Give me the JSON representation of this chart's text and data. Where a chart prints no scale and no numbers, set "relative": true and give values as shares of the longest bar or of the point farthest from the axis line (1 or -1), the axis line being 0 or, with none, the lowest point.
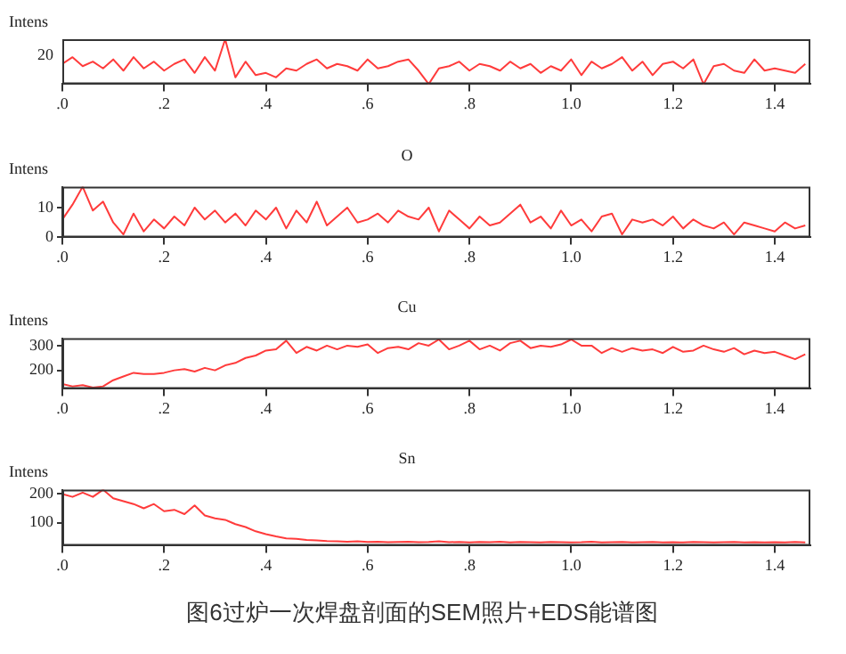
{
  "chart_data": [
    {
      "type": "line",
      "ylabel": "Intens",
      "relative": true,
      "annotations": [
        "20"
      ],
      "grid": false,
      "legend": false,
      "marker": "none",
      "x": [
        0,
        0.02,
        0.04,
        0.06,
        0.08,
        0.1,
        0.12,
        0.14,
        0.16,
        0.18,
        0.2,
        0.22,
        0.24,
        0.26,
        0.28,
        0.3,
        0.32,
        0.34,
        0.36,
        0.38,
        0.4,
        0.42,
        0.44,
        0.46,
        0.48,
        0.5,
        0.52,
        0.54,
        0.56,
        0.58,
        0.6,
        0.62,
        0.64,
        0.66,
        0.68,
        0.7,
        0.72,
        0.74,
        0.76,
        0.78,
        0.8,
        0.82,
        0.84,
        0.86,
        0.88,
        0.9,
        0.92,
        0.94,
        0.96,
        0.98,
        1,
        1.02,
        1.04,
        1.06,
        1.08,
        1.1,
        1.12,
        1.14,
        1.16,
        1.18,
        1.2,
        1.22,
        1.24,
        1.26,
        1.28,
        1.3,
        1.32,
        1.34,
        1.36,
        1.38,
        1.4,
        1.42,
        1.44,
        1.46
      ],
      "xlim": [
        0,
        1.47
      ],
      "xticks": [
        {
          "value": 0,
          "label": ".0"
        },
        {
          "value": 0.2,
          "label": ".2"
        },
        {
          "value": 0.4,
          "label": ".4"
        },
        {
          "value": 0.6,
          "label": ".6"
        },
        {
          "value": 0.8,
          "label": ".8"
        },
        {
          "value": 1,
          "label": "1.0"
        },
        {
          "value": 1.2,
          "label": "1.2"
        },
        {
          "value": 1.4,
          "label": "1.4"
        }
      ],
      "series": [
        {
          "color": "#ff3b3b",
          "values": [
            0.45,
            0.6,
            0.4,
            0.5,
            0.35,
            0.55,
            0.3,
            0.6,
            0.35,
            0.5,
            0.3,
            0.45,
            0.55,
            0.25,
            0.6,
            0.3,
            1,
            0.15,
            0.5,
            0.2,
            0.25,
            0.15,
            0.35,
            0.3,
            0.45,
            0.55,
            0.35,
            0.45,
            0.4,
            0.3,
            0.55,
            0.35,
            0.4,
            0.5,
            0.55,
            0.3,
            0,
            0.35,
            0.4,
            0.5,
            0.3,
            0.45,
            0.4,
            0.3,
            0.5,
            0.35,
            0.45,
            0.25,
            0.4,
            0.3,
            0.55,
            0.2,
            0.5,
            0.35,
            0.45,
            0.6,
            0.3,
            0.5,
            0.2,
            0.45,
            0.5,
            0.35,
            0.55,
            0,
            0.4,
            0.45,
            0.3,
            0.25,
            0.55,
            0.3,
            0.35,
            0.3,
            0.25,
            0.45
          ]
        }
      ]
    },
    {
      "type": "line",
      "title": "O",
      "ylabel": "Intens",
      "grid": false,
      "legend": false,
      "marker": "none",
      "x": [
        0,
        0.02,
        0.04,
        0.06,
        0.08,
        0.1,
        0.12,
        0.14,
        0.16,
        0.18,
        0.2,
        0.22,
        0.24,
        0.26,
        0.28,
        0.3,
        0.32,
        0.34,
        0.36,
        0.38,
        0.4,
        0.42,
        0.44,
        0.46,
        0.48,
        0.5,
        0.52,
        0.54,
        0.56,
        0.58,
        0.6,
        0.62,
        0.64,
        0.66,
        0.68,
        0.7,
        0.72,
        0.74,
        0.76,
        0.78,
        0.8,
        0.82,
        0.84,
        0.86,
        0.88,
        0.9,
        0.92,
        0.94,
        0.96,
        0.98,
        1,
        1.02,
        1.04,
        1.06,
        1.08,
        1.1,
        1.12,
        1.14,
        1.16,
        1.18,
        1.2,
        1.22,
        1.24,
        1.26,
        1.28,
        1.3,
        1.32,
        1.34,
        1.36,
        1.38,
        1.4,
        1.42,
        1.44,
        1.46
      ],
      "xlim": [
        0,
        1.47
      ],
      "xticks": [
        {
          "value": 0,
          "label": ".0"
        },
        {
          "value": 0.2,
          "label": ".2"
        },
        {
          "value": 0.4,
          "label": ".4"
        },
        {
          "value": 0.6,
          "label": ".6"
        },
        {
          "value": 0.8,
          "label": ".8"
        },
        {
          "value": 1,
          "label": "1.0"
        },
        {
          "value": 1.2,
          "label": "1.2"
        },
        {
          "value": 1.4,
          "label": "1.4"
        }
      ],
      "ylim": [
        0,
        17
      ],
      "yticks": [
        0,
        10
      ],
      "series": [
        {
          "color": "#ff3b3b",
          "values": [
            6,
            11,
            17,
            9,
            12,
            5,
            1,
            8,
            2,
            6,
            3,
            7,
            4,
            10,
            6,
            9,
            5,
            8,
            4,
            9,
            6,
            10,
            3,
            9,
            5,
            12,
            4,
            7,
            10,
            5,
            6,
            8,
            5,
            9,
            7,
            6,
            10,
            2,
            9,
            6,
            3,
            7,
            4,
            5,
            8,
            11,
            5,
            7,
            3,
            9,
            4,
            6,
            2,
            7,
            8,
            1,
            6,
            5,
            6,
            4,
            7,
            3,
            6,
            4,
            3,
            5,
            1,
            5,
            4,
            3,
            2,
            5,
            3,
            4
          ]
        }
      ]
    },
    {
      "type": "line",
      "title": "Cu",
      "ylabel": "Intens",
      "grid": false,
      "legend": false,
      "marker": "none",
      "x": [
        0,
        0.02,
        0.04,
        0.06,
        0.08,
        0.1,
        0.12,
        0.14,
        0.16,
        0.18,
        0.2,
        0.22,
        0.24,
        0.26,
        0.28,
        0.3,
        0.32,
        0.34,
        0.36,
        0.38,
        0.4,
        0.42,
        0.44,
        0.46,
        0.48,
        0.5,
        0.52,
        0.54,
        0.56,
        0.58,
        0.6,
        0.62,
        0.64,
        0.66,
        0.68,
        0.7,
        0.72,
        0.74,
        0.76,
        0.78,
        0.8,
        0.82,
        0.84,
        0.86,
        0.88,
        0.9,
        0.92,
        0.94,
        0.96,
        0.98,
        1,
        1.02,
        1.04,
        1.06,
        1.08,
        1.1,
        1.12,
        1.14,
        1.16,
        1.18,
        1.2,
        1.22,
        1.24,
        1.26,
        1.28,
        1.3,
        1.32,
        1.34,
        1.36,
        1.38,
        1.4,
        1.42,
        1.44,
        1.46
      ],
      "xlim": [
        0,
        1.47
      ],
      "xticks": [
        {
          "value": 0,
          "label": ".0"
        },
        {
          "value": 0.2,
          "label": ".2"
        },
        {
          "value": 0.4,
          "label": ".4"
        },
        {
          "value": 0.6,
          "label": ".6"
        },
        {
          "value": 0.8,
          "label": ".8"
        },
        {
          "value": 1,
          "label": "1.0"
        },
        {
          "value": 1.2,
          "label": "1.2"
        },
        {
          "value": 1.4,
          "label": "1.4"
        }
      ],
      "ylim": [
        125,
        330
      ],
      "yticks": [
        200,
        300
      ],
      "series": [
        {
          "color": "#ff3b3b",
          "values": [
            145,
            135,
            140,
            130,
            135,
            160,
            175,
            190,
            185,
            185,
            190,
            200,
            205,
            195,
            210,
            200,
            220,
            230,
            250,
            260,
            280,
            285,
            320,
            270,
            295,
            280,
            300,
            285,
            300,
            295,
            305,
            270,
            290,
            295,
            285,
            310,
            300,
            325,
            285,
            300,
            320,
            285,
            300,
            280,
            310,
            320,
            290,
            300,
            295,
            305,
            325,
            300,
            300,
            270,
            290,
            275,
            290,
            280,
            285,
            270,
            295,
            275,
            280,
            300,
            285,
            275,
            290,
            265,
            280,
            270,
            275,
            260,
            245,
            265
          ]
        }
      ]
    },
    {
      "type": "line",
      "title": "Sn",
      "ylabel": "Intens",
      "annotations": [
        "图6过炉一次焊盘剖面的SEM照片+EDS能谱图"
      ],
      "grid": false,
      "legend": false,
      "marker": "none",
      "x": [
        0,
        0.02,
        0.04,
        0.06,
        0.08,
        0.1,
        0.12,
        0.14,
        0.16,
        0.18,
        0.2,
        0.22,
        0.24,
        0.26,
        0.28,
        0.3,
        0.32,
        0.34,
        0.36,
        0.38,
        0.4,
        0.42,
        0.44,
        0.46,
        0.48,
        0.5,
        0.52,
        0.54,
        0.56,
        0.58,
        0.6,
        0.62,
        0.64,
        0.66,
        0.68,
        0.7,
        0.72,
        0.74,
        0.76,
        0.78,
        0.8,
        0.82,
        0.84,
        0.86,
        0.88,
        0.9,
        0.92,
        0.94,
        0.96,
        0.98,
        1,
        1.02,
        1.04,
        1.06,
        1.08,
        1.1,
        1.12,
        1.14,
        1.16,
        1.18,
        1.2,
        1.22,
        1.24,
        1.26,
        1.28,
        1.3,
        1.32,
        1.34,
        1.36,
        1.38,
        1.4,
        1.42,
        1.44,
        1.46
      ],
      "xlim": [
        0,
        1.47
      ],
      "xticks": [
        {
          "value": 0,
          "label": ".0"
        },
        {
          "value": 0.2,
          "label": ".2"
        },
        {
          "value": 0.4,
          "label": ".4"
        },
        {
          "value": 0.6,
          "label": ".6"
        },
        {
          "value": 0.8,
          "label": ".8"
        },
        {
          "value": 1,
          "label": "1.0"
        },
        {
          "value": 1.2,
          "label": "1.2"
        },
        {
          "value": 1.4,
          "label": "1.4"
        }
      ],
      "ylim": [
        20,
        215
      ],
      "yticks": [
        100,
        200
      ],
      "series": [
        {
          "color": "#ff3b3b",
          "values": [
            200,
            190,
            205,
            190,
            215,
            185,
            175,
            165,
            150,
            165,
            140,
            145,
            130,
            160,
            125,
            115,
            110,
            95,
            85,
            70,
            60,
            52,
            45,
            44,
            40,
            38,
            36,
            35,
            34,
            35,
            33,
            34,
            32,
            33,
            34,
            32,
            33,
            35,
            32,
            33,
            31,
            33,
            32,
            34,
            31,
            33,
            32,
            31,
            33,
            32,
            31,
            32,
            34,
            31,
            32,
            33,
            31,
            32,
            33,
            31,
            32,
            31,
            33,
            32,
            31,
            32,
            33,
            31,
            32,
            31,
            32,
            31,
            33,
            31
          ]
        }
      ]
    }
  ]
}
